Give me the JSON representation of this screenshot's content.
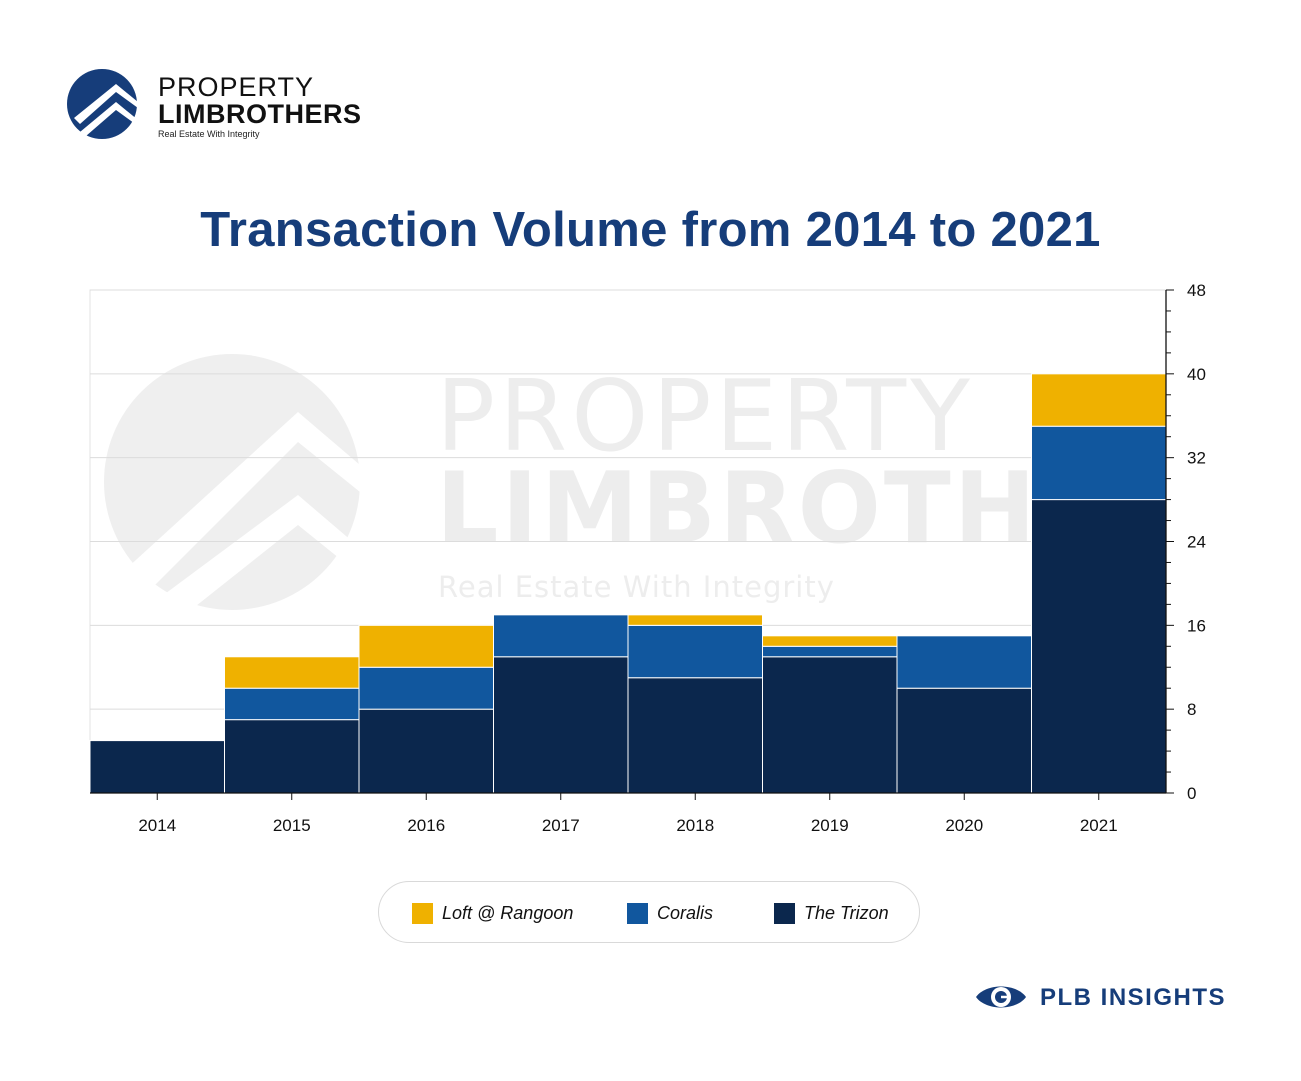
{
  "brand": {
    "line1": "PROPERTY",
    "line2": "LIMBROTHERS",
    "tagline": "Real Estate With Integrity"
  },
  "watermark": {
    "line1": "PROPERTY",
    "line2": "LIMBROTHE",
    "tagline": "Real Estate With Integrity"
  },
  "colors": {
    "brand_navy": "#163d7a",
    "loft": "#efb100",
    "coralis": "#11579e",
    "trizon": "#0b274d"
  },
  "chart_data": {
    "type": "bar",
    "stacked": true,
    "title": "Transaction Volume from 2014 to 2021",
    "xlabel": "",
    "ylabel": "",
    "categories": [
      "2014",
      "2015",
      "2016",
      "2017",
      "2018",
      "2019",
      "2020",
      "2021"
    ],
    "series": [
      {
        "name": "The Trizon",
        "color": "#0b274d",
        "values": [
          5,
          7,
          8,
          13,
          11,
          13,
          10,
          28
        ]
      },
      {
        "name": "Coralis",
        "color": "#11579e",
        "values": [
          0,
          3,
          4,
          4,
          5,
          1,
          5,
          7
        ]
      },
      {
        "name": "Loft @ Rangoon",
        "color": "#efb100",
        "values": [
          0,
          3,
          4,
          0,
          1,
          1,
          0,
          5
        ]
      }
    ],
    "ylim": [
      0,
      48
    ],
    "yticks": [
      0,
      8,
      16,
      24,
      32,
      40,
      48
    ],
    "y_axis_position": "right",
    "grid": true,
    "legend_position": "bottom"
  },
  "legend": [
    {
      "label": "Loft @ Rangoon",
      "color": "#efb100"
    },
    {
      "label": "Coralis",
      "color": "#11579e"
    },
    {
      "label": "The Trizon",
      "color": "#0b274d"
    }
  ],
  "footer": {
    "label": "PLB INSIGHTS",
    "icon": "eye-icon"
  }
}
